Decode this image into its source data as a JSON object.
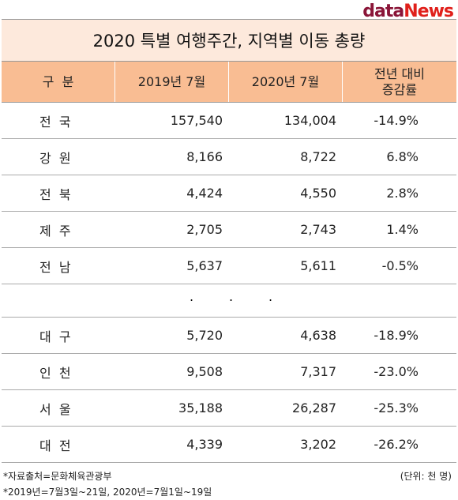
{
  "logo": {
    "data": "data",
    "news": "News"
  },
  "title": "2020 특별 여행주간, 지역별 이동 총량",
  "table": {
    "header": [
      "구  분",
      "2019년 7월",
      "2020년 7월",
      "전년 대비\n증감률"
    ],
    "rows_top": [
      [
        "전  국",
        "157,540",
        "134,004",
        "-14.9%"
      ],
      [
        "강  원",
        "8,166",
        "8,722",
        "6.8%"
      ],
      [
        "전  북",
        "4,424",
        "4,550",
        "2.8%"
      ],
      [
        "제  주",
        "2,705",
        "2,743",
        "1.4%"
      ],
      [
        "전  남",
        "5,637",
        "5,611",
        "-0.5%"
      ]
    ],
    "ellipsis": [
      ".",
      ".",
      "."
    ],
    "rows_bottom": [
      [
        "대  구",
        "5,720",
        "4,638",
        "-18.9%"
      ],
      [
        "인  천",
        "9,508",
        "7,317",
        "-23.0%"
      ],
      [
        "서  울",
        "35,188",
        "26,287",
        "-25.3%"
      ],
      [
        "대  전",
        "4,339",
        "3,202",
        "-26.2%"
      ]
    ]
  },
  "footer": {
    "source": "*자료출처=문화체육관광부",
    "unit": "(단위: 천 명)",
    "period": "*2019년=7월3일~21일, 2020년=7월1일~19일"
  }
}
